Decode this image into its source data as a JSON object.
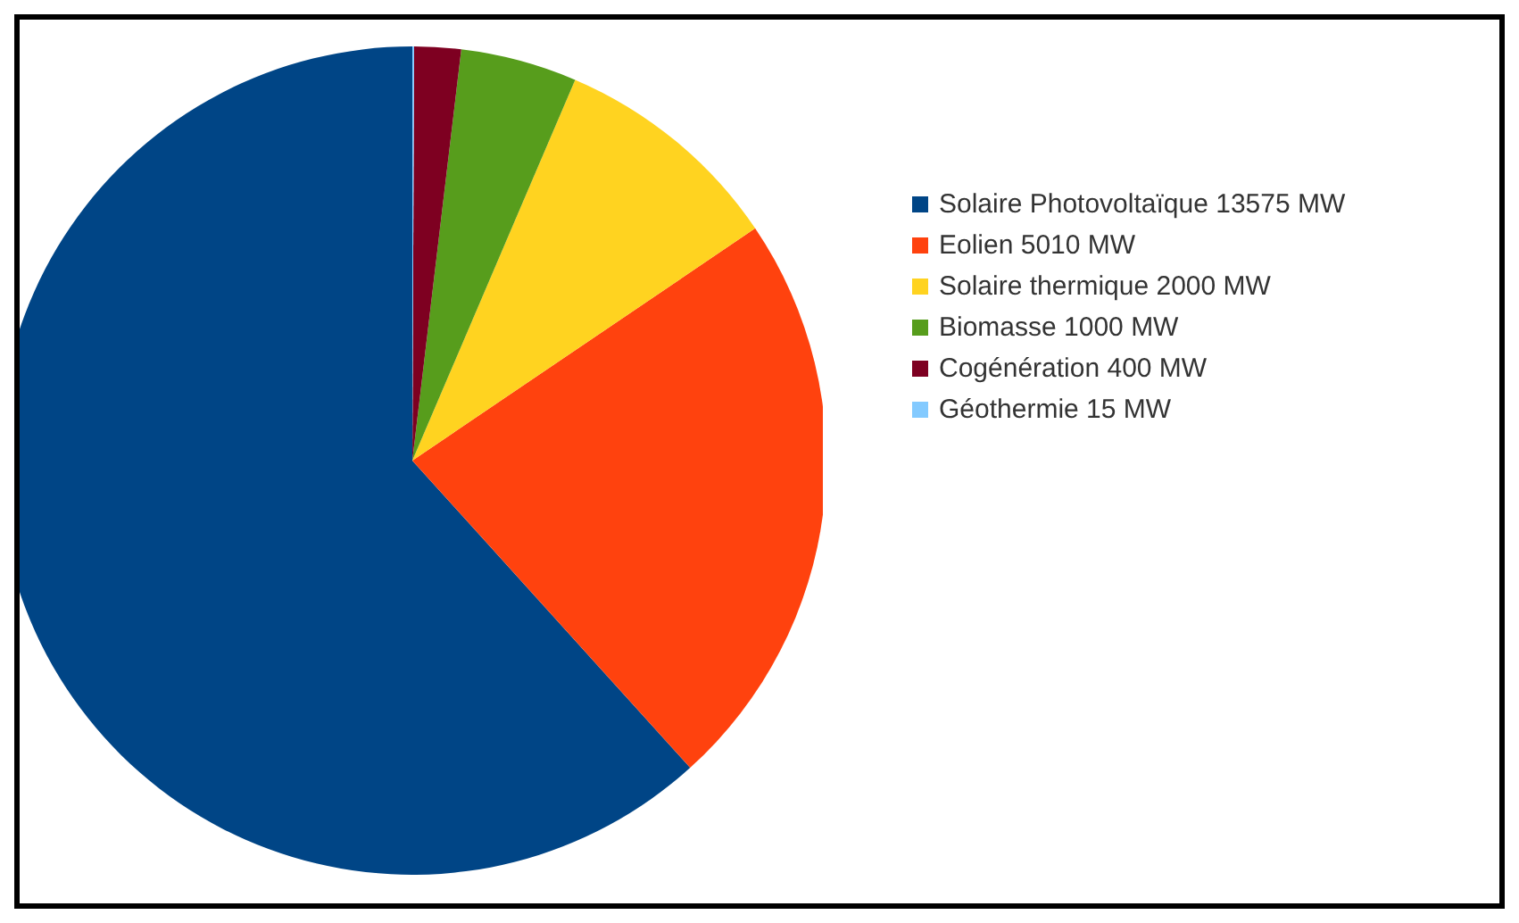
{
  "chart_data": {
    "type": "pie",
    "categories": [
      "Solaire Photovoltaïque 13575 MW",
      "Eolien 5010 MW",
      "Solaire thermique 2000 MW",
      "Biomasse 1000 MW",
      "Cogénération 400 MW",
      "Géothermie 15 MW"
    ],
    "values": [
      13575,
      5010,
      2000,
      1000,
      400,
      15
    ],
    "colors": [
      "#004586",
      "#ff420e",
      "#ffd320",
      "#579d1c",
      "#7e0021",
      "#83caff"
    ],
    "legend": "right"
  }
}
